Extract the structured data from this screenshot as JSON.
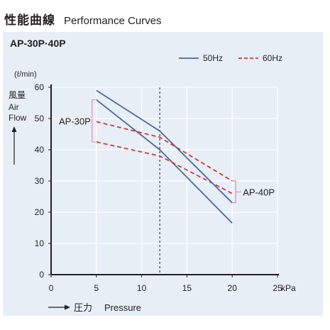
{
  "heading": {
    "jp": "性能曲線",
    "en": "Performance Curves"
  },
  "model_title": "AP-30P·40P",
  "colors": {
    "hz50": "#4a6a9c",
    "hz60": "#d03a3a",
    "bracket": "#e07ab0",
    "grid": "#ffffff",
    "panel": "#e8eef6"
  },
  "chart_data": {
    "type": "line",
    "xlabel_jp": "圧力",
    "xlabel": "Pressure",
    "xunit": "kPa",
    "ylabel_jp": "風量",
    "ylabel": [
      "Air",
      "Flow"
    ],
    "yunit": "(ℓ/min)",
    "xlim": [
      0,
      25
    ],
    "ylim": [
      0,
      60
    ],
    "xticks": [
      0,
      5,
      10,
      15,
      20,
      25
    ],
    "yticks": [
      0,
      10,
      20,
      30,
      40,
      50,
      60
    ],
    "grid": true,
    "reference_line_x": 12,
    "legend": {
      "placement": "top-right",
      "entries": [
        {
          "label": "50Hz",
          "style": "solid",
          "color": "#4a6a9c"
        },
        {
          "label": "60Hz",
          "style": "dashed",
          "color": "#d03a3a"
        }
      ]
    },
    "groups": [
      {
        "label": "AP-30P",
        "series_indices": [
          0,
          1
        ]
      },
      {
        "label": "AP-40P",
        "series_indices": [
          2,
          3
        ]
      }
    ],
    "series": [
      {
        "model": "AP-30P",
        "freq": "50Hz",
        "x": [
          5,
          12,
          20
        ],
        "y": [
          56,
          40,
          16.5
        ]
      },
      {
        "model": "AP-30P",
        "freq": "60Hz",
        "x": [
          5,
          12,
          20
        ],
        "y": [
          42.5,
          38,
          26
        ]
      },
      {
        "model": "AP-40P",
        "freq": "50Hz",
        "x": [
          5,
          12,
          20
        ],
        "y": [
          59,
          46,
          23
        ]
      },
      {
        "model": "AP-40P",
        "freq": "60Hz",
        "x": [
          5,
          12,
          20
        ],
        "y": [
          49,
          44,
          30
        ]
      }
    ]
  }
}
